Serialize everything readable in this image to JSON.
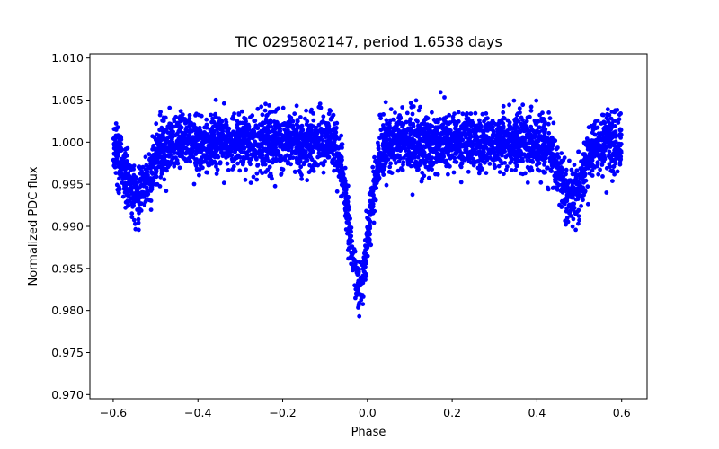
{
  "chart_data": {
    "type": "scatter",
    "title": "TIC 0295802147, period 1.6538 days",
    "xlabel": "Phase",
    "ylabel": "Normalized PDC flux",
    "xlim": [
      -0.655,
      0.66
    ],
    "ylim": [
      0.9695,
      1.0105
    ],
    "xticks": [
      -0.6,
      -0.4,
      -0.2,
      0.0,
      0.2,
      0.4,
      0.6
    ],
    "xtick_labels": [
      "−0.6",
      "−0.4",
      "−0.2",
      "0.0",
      "0.2",
      "0.4",
      "0.6"
    ],
    "yticks": [
      0.97,
      0.975,
      0.98,
      0.985,
      0.99,
      0.995,
      1.0,
      1.005,
      1.01
    ],
    "ytick_labels": [
      "0.970",
      "0.975",
      "0.980",
      "0.985",
      "0.990",
      "0.995",
      "1.000",
      "1.005",
      "1.010"
    ],
    "grid": false,
    "marker_color": "#0000ff",
    "model": {
      "phase_range": [
        -0.6,
        0.6
      ],
      "baseline": 1.0,
      "scatter_sigma": 0.0017,
      "primary_eclipse": {
        "center": -0.02,
        "depth": 0.0175,
        "width": 0.022
      },
      "secondary_eclipse": {
        "centers": [
          -0.54,
          0.48
        ],
        "depth": 0.0065,
        "width": 0.028
      }
    },
    "series": [
      {
        "name": "TIC 0295802147",
        "sample_points": [
          [
            -0.6,
            1.0015
          ],
          [
            -0.57,
            0.9985
          ],
          [
            -0.54,
            0.9935
          ],
          [
            -0.51,
            0.9975
          ],
          [
            -0.48,
            1.0015
          ],
          [
            -0.4,
            1.001
          ],
          [
            -0.3,
            1.001
          ],
          [
            -0.2,
            1.001
          ],
          [
            -0.1,
            1.0005
          ],
          [
            -0.06,
            0.995
          ],
          [
            -0.04,
            0.987
          ],
          [
            -0.02,
            0.9825
          ],
          [
            -0.005,
            0.9835
          ],
          [
            0.01,
            0.993
          ],
          [
            0.03,
            1.0
          ],
          [
            0.1,
            1.001
          ],
          [
            0.2,
            1.001
          ],
          [
            0.3,
            1.001
          ],
          [
            0.4,
            1.001
          ],
          [
            0.45,
            0.9985
          ],
          [
            0.48,
            0.9935
          ],
          [
            0.51,
            0.9975
          ],
          [
            0.55,
            1.0015
          ],
          [
            0.6,
            1.0015
          ]
        ]
      }
    ]
  }
}
